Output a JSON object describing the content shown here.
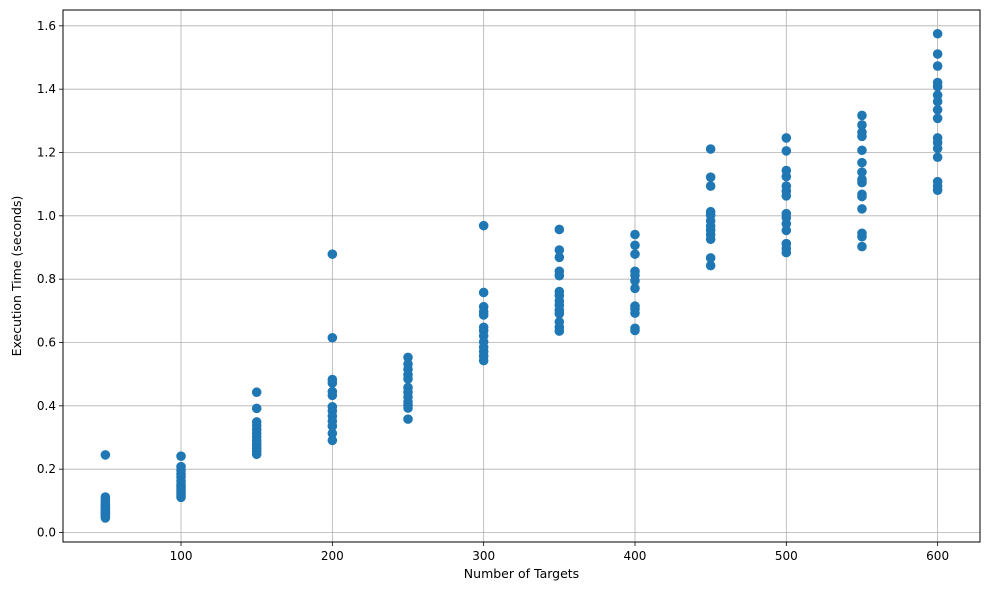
{
  "chart_data": {
    "type": "scatter",
    "title": "",
    "xlabel": "Number of Targets",
    "ylabel": "Execution Time (seconds)",
    "xlim": [
      22,
      628
    ],
    "ylim": [
      -0.03,
      1.65
    ],
    "xticks": [
      100,
      200,
      300,
      400,
      500,
      600
    ],
    "xtick_labels": [
      "100",
      "200",
      "300",
      "400",
      "500",
      "600"
    ],
    "yticks": [
      0.0,
      0.2,
      0.4,
      0.6,
      0.8,
      1.0,
      1.2,
      1.4,
      1.6
    ],
    "ytick_labels": [
      "0.0",
      "0.2",
      "0.4",
      "0.6",
      "0.8",
      "1.0",
      "1.2",
      "1.4",
      "1.6"
    ],
    "grid": true,
    "color": "#1f77b4",
    "series": [
      {
        "points": [
          [
            50,
            0.245
          ],
          [
            50,
            0.112
          ],
          [
            50,
            0.103
          ],
          [
            50,
            0.095
          ],
          [
            50,
            0.088
          ],
          [
            50,
            0.082
          ],
          [
            50,
            0.077
          ],
          [
            50,
            0.071
          ],
          [
            50,
            0.066
          ],
          [
            50,
            0.061
          ],
          [
            50,
            0.056
          ],
          [
            50,
            0.051
          ],
          [
            50,
            0.046
          ],
          [
            100,
            0.241
          ],
          [
            100,
            0.208
          ],
          [
            100,
            0.196
          ],
          [
            100,
            0.185
          ],
          [
            100,
            0.175
          ],
          [
            100,
            0.163
          ],
          [
            100,
            0.153
          ],
          [
            100,
            0.145
          ],
          [
            100,
            0.138
          ],
          [
            100,
            0.131
          ],
          [
            100,
            0.124
          ],
          [
            100,
            0.117
          ],
          [
            100,
            0.111
          ],
          [
            150,
            0.443
          ],
          [
            150,
            0.392
          ],
          [
            150,
            0.349
          ],
          [
            150,
            0.338
          ],
          [
            150,
            0.325
          ],
          [
            150,
            0.313
          ],
          [
            150,
            0.302
          ],
          [
            150,
            0.291
          ],
          [
            150,
            0.281
          ],
          [
            150,
            0.273
          ],
          [
            150,
            0.265
          ],
          [
            150,
            0.256
          ],
          [
            150,
            0.247
          ],
          [
            200,
            0.879
          ],
          [
            200,
            0.615
          ],
          [
            200,
            0.483
          ],
          [
            200,
            0.472
          ],
          [
            200,
            0.445
          ],
          [
            200,
            0.433
          ],
          [
            200,
            0.397
          ],
          [
            200,
            0.384
          ],
          [
            200,
            0.368
          ],
          [
            200,
            0.352
          ],
          [
            200,
            0.336
          ],
          [
            200,
            0.313
          ],
          [
            200,
            0.291
          ],
          [
            250,
            0.553
          ],
          [
            250,
            0.532
          ],
          [
            250,
            0.515
          ],
          [
            250,
            0.498
          ],
          [
            250,
            0.485
          ],
          [
            250,
            0.458
          ],
          [
            250,
            0.443
          ],
          [
            250,
            0.428
          ],
          [
            250,
            0.412
          ],
          [
            250,
            0.402
          ],
          [
            250,
            0.393
          ],
          [
            250,
            0.358
          ],
          [
            300,
            0.969
          ],
          [
            300,
            0.758
          ],
          [
            300,
            0.713
          ],
          [
            300,
            0.698
          ],
          [
            300,
            0.687
          ],
          [
            300,
            0.648
          ],
          [
            300,
            0.637
          ],
          [
            300,
            0.621
          ],
          [
            300,
            0.602
          ],
          [
            300,
            0.585
          ],
          [
            300,
            0.571
          ],
          [
            300,
            0.557
          ],
          [
            300,
            0.543
          ],
          [
            350,
            0.957
          ],
          [
            350,
            0.892
          ],
          [
            350,
            0.869
          ],
          [
            350,
            0.825
          ],
          [
            350,
            0.811
          ],
          [
            350,
            0.761
          ],
          [
            350,
            0.748
          ],
          [
            350,
            0.731
          ],
          [
            350,
            0.718
          ],
          [
            350,
            0.702
          ],
          [
            350,
            0.691
          ],
          [
            350,
            0.665
          ],
          [
            350,
            0.648
          ],
          [
            350,
            0.636
          ],
          [
            400,
            0.941
          ],
          [
            400,
            0.907
          ],
          [
            400,
            0.879
          ],
          [
            400,
            0.825
          ],
          [
            400,
            0.812
          ],
          [
            400,
            0.795
          ],
          [
            400,
            0.771
          ],
          [
            400,
            0.715
          ],
          [
            400,
            0.706
          ],
          [
            400,
            0.693
          ],
          [
            400,
            0.645
          ],
          [
            400,
            0.638
          ],
          [
            450,
            1.211
          ],
          [
            450,
            1.122
          ],
          [
            450,
            1.094
          ],
          [
            450,
            1.013
          ],
          [
            450,
            1.002
          ],
          [
            450,
            0.984
          ],
          [
            450,
            0.968
          ],
          [
            450,
            0.955
          ],
          [
            450,
            0.941
          ],
          [
            450,
            0.926
          ],
          [
            450,
            0.867
          ],
          [
            450,
            0.843
          ],
          [
            500,
            1.246
          ],
          [
            500,
            1.205
          ],
          [
            500,
            1.143
          ],
          [
            500,
            1.124
          ],
          [
            500,
            1.094
          ],
          [
            500,
            1.078
          ],
          [
            500,
            1.063
          ],
          [
            500,
            1.007
          ],
          [
            500,
            0.994
          ],
          [
            500,
            0.975
          ],
          [
            500,
            0.954
          ],
          [
            500,
            0.912
          ],
          [
            500,
            0.897
          ],
          [
            500,
            0.884
          ],
          [
            550,
            1.317
          ],
          [
            550,
            1.287
          ],
          [
            550,
            1.264
          ],
          [
            550,
            1.251
          ],
          [
            550,
            1.207
          ],
          [
            550,
            1.168
          ],
          [
            550,
            1.138
          ],
          [
            550,
            1.115
          ],
          [
            550,
            1.105
          ],
          [
            550,
            1.068
          ],
          [
            550,
            1.061
          ],
          [
            550,
            1.022
          ],
          [
            550,
            0.945
          ],
          [
            550,
            0.934
          ],
          [
            550,
            0.903
          ],
          [
            600,
            1.575
          ],
          [
            600,
            1.511
          ],
          [
            600,
            1.473
          ],
          [
            600,
            1.421
          ],
          [
            600,
            1.408
          ],
          [
            600,
            1.381
          ],
          [
            600,
            1.361
          ],
          [
            600,
            1.335
          ],
          [
            600,
            1.308
          ],
          [
            600,
            1.246
          ],
          [
            600,
            1.231
          ],
          [
            600,
            1.213
          ],
          [
            600,
            1.185
          ],
          [
            600,
            1.108
          ],
          [
            600,
            1.094
          ],
          [
            600,
            1.081
          ]
        ]
      }
    ]
  }
}
